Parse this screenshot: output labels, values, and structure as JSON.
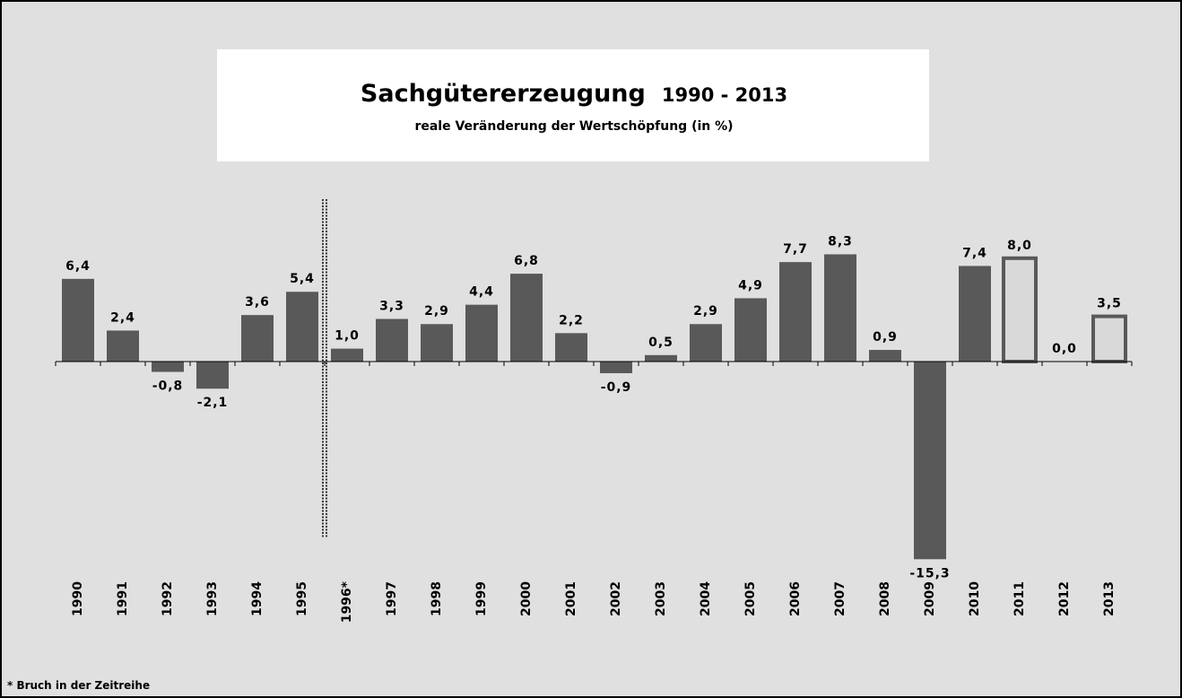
{
  "chart_data": {
    "type": "bar",
    "title": "Sachgütererzeugung",
    "title_period": "1990 - 2013",
    "subtitle": "reale Veränderung der Wertschöpfung (in %)",
    "footnote": "* Bruch in der Zeitreihe",
    "categories": [
      "1990",
      "1991",
      "1992",
      "1993",
      "1994",
      "1995",
      "1996*",
      "1997",
      "1998",
      "1999",
      "2000",
      "2001",
      "2002",
      "2003",
      "2004",
      "2005",
      "2006",
      "2007",
      "2008",
      "2009",
      "2010",
      "2011",
      "2012",
      "2013"
    ],
    "values": [
      6.4,
      2.4,
      -0.8,
      -2.1,
      3.6,
      5.4,
      1.0,
      3.3,
      2.9,
      4.4,
      6.8,
      2.2,
      -0.9,
      0.5,
      2.9,
      4.9,
      7.7,
      8.3,
      0.9,
      -15.3,
      7.4,
      8.0,
      0.0,
      3.5
    ],
    "value_labels": [
      "6,4",
      "2,4",
      "-0,8",
      "-2,1",
      "3,6",
      "5,4",
      "1,0",
      "3,3",
      "2,9",
      "4,4",
      "6,8",
      "2,2",
      "-0,9",
      "0,5",
      "2,9",
      "4,9",
      "7,7",
      "8,3",
      "0,9",
      "-15,3",
      "7,4",
      "8,0",
      "0,0",
      "3,5"
    ],
    "colors": [
      "#595959",
      "#595959",
      "#595959",
      "#595959",
      "#595959",
      "#595959",
      "#595959",
      "#595959",
      "#595959",
      "#595959",
      "#595959",
      "#595959",
      "#595959",
      "#595959",
      "#595959",
      "#595959",
      "#595959",
      "#595959",
      "#595959",
      "#595959",
      "#595959",
      "#d9d9d9",
      "#d9d9d9",
      "#d9d9d9"
    ],
    "ylim": [
      -16,
      9
    ]
  }
}
